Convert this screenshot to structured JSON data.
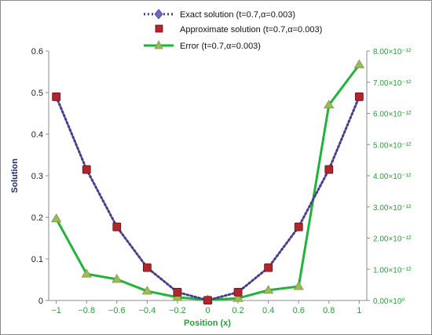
{
  "chart_data": {
    "type": "line",
    "xlabel": "Position (x)",
    "ylabel": "Solution",
    "y2label": "",
    "x": [
      -1,
      -0.8,
      -0.6,
      -0.4,
      -0.2,
      0,
      0.2,
      0.4,
      0.6,
      0.8,
      1
    ],
    "xticks": [
      "−1",
      "−0.8",
      "−0.6",
      "−0.4",
      "−0.2",
      "0",
      "0.2",
      "0.4",
      "0.6",
      "0.8",
      "1"
    ],
    "xlim": [
      -1.05,
      1.05
    ],
    "ylim": [
      0,
      0.6
    ],
    "yticks": [
      "0",
      "0.1",
      "0.2",
      "0.3",
      "0.4",
      "0.5",
      "0.6"
    ],
    "y2lim": [
      0,
      8e-12
    ],
    "y2ticks": [
      "0.00×10⁰",
      "1.00×10⁻¹²",
      "2.00×10⁻¹²",
      "3.00×10⁻¹²",
      "4.00×10⁻¹²",
      "5.00×10⁻¹²",
      "6.00×10⁻¹²",
      "7.00×10⁻¹²",
      "8.00×10⁻¹²"
    ],
    "grid": false,
    "legend_position": "top",
    "series": [
      {
        "name": "Exact solution (t=0.7,α=0.003)",
        "axis": "left",
        "style": "dotted line with diamond markers",
        "color": "#4a3d8f",
        "values": [
          0.49,
          0.315,
          0.177,
          0.079,
          0.02,
          0.0005,
          0.02,
          0.079,
          0.177,
          0.315,
          0.49
        ]
      },
      {
        "name": "Approximate solution (t=0.7,α=0.003)",
        "axis": "left",
        "style": "square markers",
        "color": "#b0262c",
        "values": [
          0.49,
          0.315,
          0.177,
          0.079,
          0.02,
          0.0005,
          0.02,
          0.079,
          0.177,
          0.315,
          0.49
        ]
      },
      {
        "name": "Error (t=0.7,α=0.003)",
        "axis": "right",
        "style": "solid line with triangle markers",
        "color": "#22b33a",
        "marker_color": "#9bbb59",
        "values": [
          2.62e-12,
          8.5e-13,
          6.8e-13,
          3e-13,
          1e-13,
          2e-14,
          7e-14,
          3.3e-13,
          4.5e-13,
          6.27e-12,
          7.56e-12
        ]
      }
    ]
  }
}
